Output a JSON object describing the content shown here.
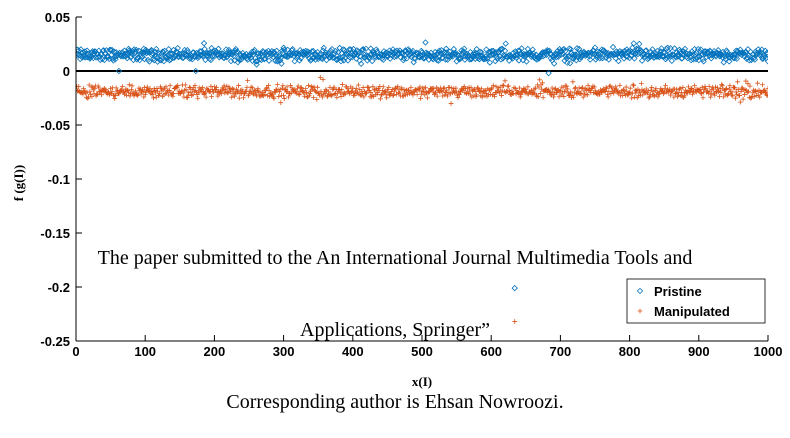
{
  "chart_data": {
    "type": "scatter",
    "title": "",
    "xlabel": "x(I)",
    "ylabel": "f (g(I))",
    "xlim": [
      0,
      1000
    ],
    "ylim": [
      -0.25,
      0.05
    ],
    "xticks": [
      0,
      100,
      200,
      300,
      400,
      500,
      600,
      700,
      800,
      900,
      1000
    ],
    "xtick_labels": [
      "0",
      "100",
      "200",
      "300",
      "400",
      "500",
      "600",
      "700",
      "800",
      "900",
      "1000"
    ],
    "yticks": [
      0.05,
      0,
      -0.05,
      -0.1,
      -0.15,
      -0.2,
      -0.25
    ],
    "ytick_labels": [
      "0.05",
      "0",
      "-0.05",
      "-0.1",
      "-0.15",
      "-0.2",
      "-0.25"
    ],
    "grid": false,
    "reference_line_y": 0,
    "legend_position": "bottom-right",
    "series": [
      {
        "name": "Pristine",
        "marker": "diamond",
        "color": "#0072BD",
        "n_points": 1000,
        "x_range": [
          1,
          1000
        ],
        "typical_value": 0.017,
        "typical_range": [
          0.008,
          0.022
        ],
        "notable_points": [
          {
            "x": 634,
            "y": -0.201
          },
          {
            "x": 62,
            "y": 0.0
          },
          {
            "x": 173,
            "y": 0.0
          },
          {
            "x": 683,
            "y": -0.002
          }
        ]
      },
      {
        "name": "Manipulated",
        "marker": "plus",
        "color": "#D95319",
        "n_points": 1000,
        "x_range": [
          1,
          1000
        ],
        "typical_value": -0.019,
        "typical_range": [
          -0.026,
          -0.012
        ],
        "notable_points": [
          {
            "x": 634,
            "y": -0.232
          },
          {
            "x": 353,
            "y": -0.006
          },
          {
            "x": 357,
            "y": -0.008
          }
        ]
      }
    ]
  },
  "watermark": {
    "line1": "The paper submitted to the An International Journal Multimedia Tools and",
    "line2": "Applications, Springer”",
    "line3": "Corresponding author is Ehsan Nowroozi."
  }
}
